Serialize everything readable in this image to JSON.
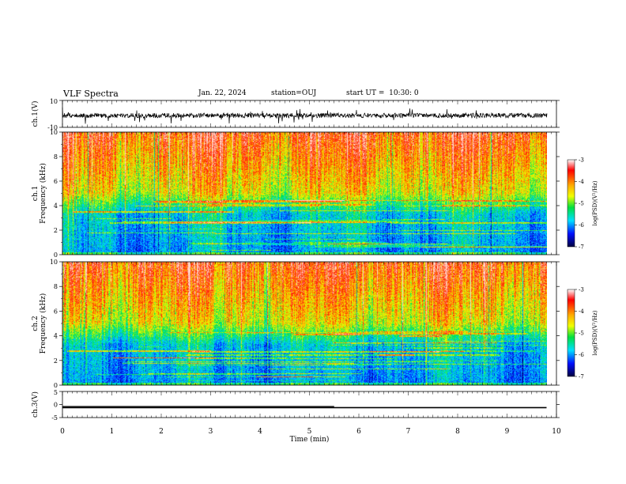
{
  "header": {
    "title": "VLF Spectra",
    "date": "Jan. 22, 2024",
    "station": "station=OUJ",
    "start_ut": "start UT =  10:30: 0"
  },
  "chart_data": [
    {
      "type": "line",
      "ylabel": "ch.1(V)",
      "ylim": [
        -10,
        10
      ],
      "yticks": [
        "10",
        "-10"
      ],
      "description_values": {
        "baseline": 0,
        "noise_amplitude": 3
      },
      "x_range_min": [
        0,
        9.8
      ]
    },
    {
      "type": "heatmap",
      "ylabel_line1": "ch.1",
      "ylabel_line2": "Frequency (kHz)",
      "ylim": [
        0,
        10
      ],
      "yticks": [
        "0",
        "2",
        "4",
        "6",
        "8",
        "10"
      ],
      "colorbar": {
        "label": "log(PSD)(V²/Hz)",
        "ticks": [
          "-3",
          "-4",
          "-5",
          "-6",
          "-7"
        ],
        "range": [
          -7,
          -3
        ]
      }
    },
    {
      "type": "heatmap",
      "ylabel_line1": "ch.2",
      "ylabel_line2": "Frequency (kHz)",
      "ylim": [
        0,
        10
      ],
      "yticks": [
        "0",
        "2",
        "4",
        "6",
        "8",
        "10"
      ],
      "colorbar": {
        "label": "log(PSD)(V²/Hz)",
        "ticks": [
          "-3",
          "-4",
          "-5",
          "-6",
          "-7"
        ],
        "range": [
          -7,
          -3
        ]
      }
    },
    {
      "type": "line",
      "ylabel": "ch.3(V)",
      "ylim": [
        -5,
        5
      ],
      "yticks": [
        "5",
        "0",
        "-5"
      ],
      "x": [
        0,
        9.8
      ],
      "y": [
        -1.2,
        -1.2
      ]
    }
  ],
  "x_axis": {
    "label": "Time (min)",
    "range": [
      0,
      10
    ],
    "ticks": [
      "0",
      "1",
      "2",
      "3",
      "4",
      "5",
      "6",
      "7",
      "8",
      "9",
      "10"
    ]
  },
  "colors": {
    "red": "#ff1e00",
    "yellow": "#f0ff00",
    "green": "#00e070",
    "cyan": "#00d8ff",
    "blue": "#0010ff",
    "darkblue": "#000080",
    "trace": "#000000"
  }
}
